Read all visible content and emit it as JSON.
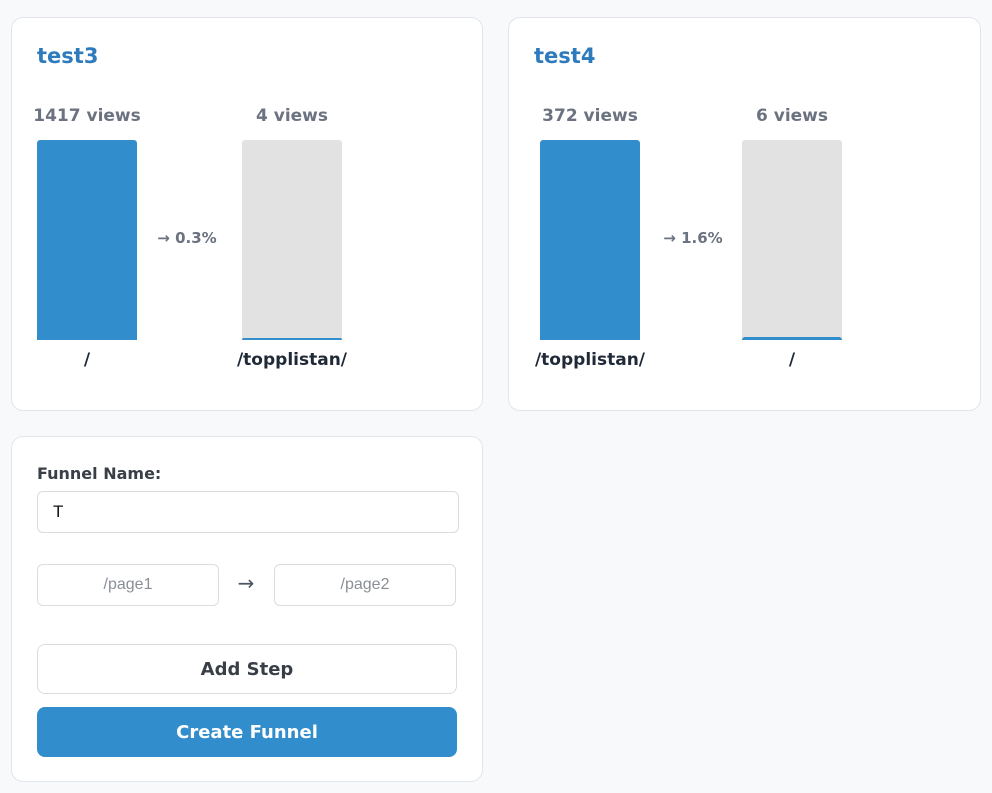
{
  "colors": {
    "accent": "#318dcc",
    "title": "#2d7bbd",
    "bar_empty": "#e2e2e2"
  },
  "funnels": [
    {
      "name": "test3",
      "steps": [
        {
          "views": 1417,
          "views_label": "1417 views",
          "path": "/"
        },
        {
          "views": 4,
          "views_label": "4 views",
          "path": "/topplistan/"
        }
      ],
      "conversions": [
        {
          "label": "→ 0.3%"
        }
      ]
    },
    {
      "name": "test4",
      "steps": [
        {
          "views": 372,
          "views_label": "372 views",
          "path": "/topplistan/"
        },
        {
          "views": 6,
          "views_label": "6 views",
          "path": "/"
        }
      ],
      "conversions": [
        {
          "label": "→ 1.6%"
        }
      ]
    }
  ],
  "form": {
    "name_label": "Funnel Name:",
    "name_value": "T",
    "steps": [
      {
        "placeholder": "/page1",
        "value": ""
      },
      {
        "placeholder": "/page2",
        "value": ""
      }
    ],
    "arrow": "→",
    "add_step_label": "Add Step",
    "create_label": "Create Funnel"
  }
}
